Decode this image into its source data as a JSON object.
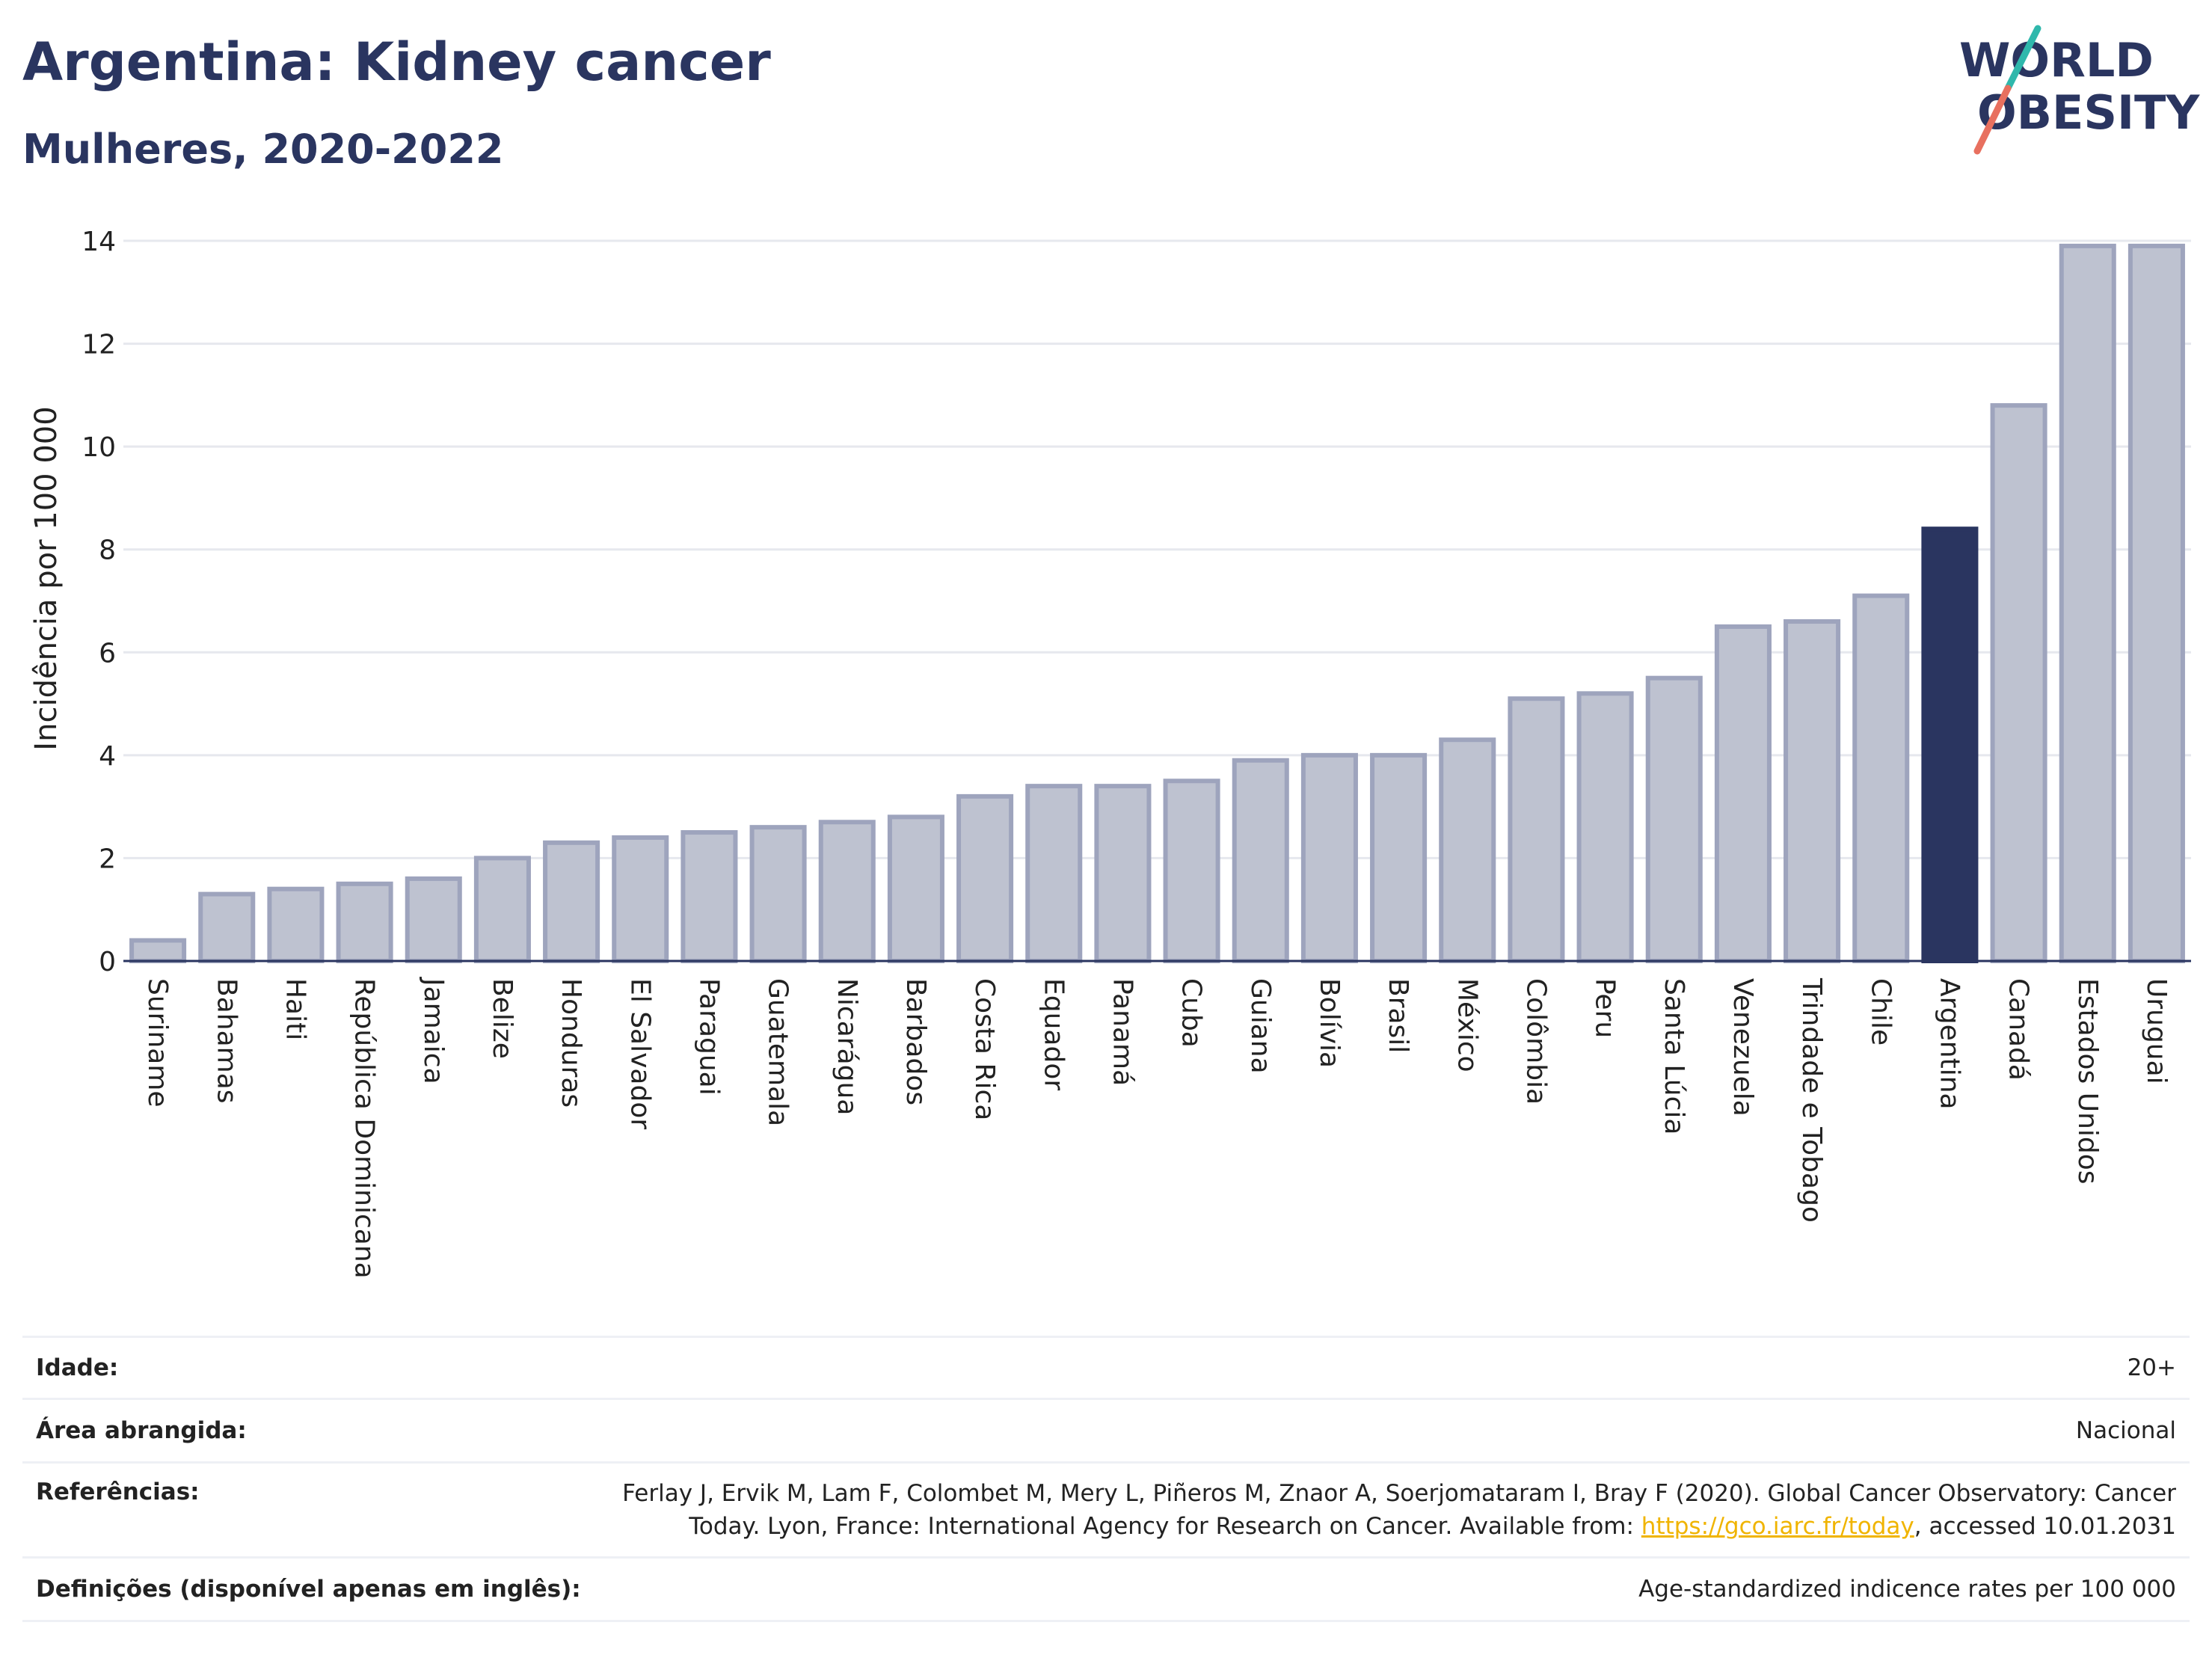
{
  "header": {
    "title": "Argentina: Kidney cancer",
    "subtitle": "Mulheres, 2020-2022",
    "logo_line1": "WORLD",
    "logo_line2": "OBESITY"
  },
  "colors": {
    "bar": "#bec2d0",
    "bar_border": "#9ea4bd",
    "highlight": "#2a3560",
    "grid": "#e6e8ee",
    "logo_teal": "#2fb8ac",
    "logo_coral": "#e8705f"
  },
  "chart_data": {
    "type": "bar",
    "ylabel": "Incidência por 100 000",
    "ylim": [
      0,
      14
    ],
    "yticks": [
      0,
      2,
      4,
      6,
      8,
      10,
      12,
      14
    ],
    "grid": true,
    "highlight": "Argentina",
    "categories": [
      "Suriname",
      "Bahamas",
      "Haiti",
      "República Dominicana",
      "Jamaica",
      "Belize",
      "Honduras",
      "El Salvador",
      "Paraguai",
      "Guatemala",
      "Nicarágua",
      "Barbados",
      "Costa Rica",
      "Equador",
      "Panamá",
      "Cuba",
      "Guiana",
      "Bolívia",
      "Brasil",
      "México",
      "Colômbia",
      "Peru",
      "Santa Lúcia",
      "Venezuela",
      "Trindade e Tobago",
      "Chile",
      "Argentina",
      "Canadá",
      "Estados Unidos",
      "Uruguai"
    ],
    "values": [
      0.4,
      1.3,
      1.4,
      1.5,
      1.6,
      2.0,
      2.3,
      2.4,
      2.5,
      2.6,
      2.7,
      2.8,
      3.2,
      3.4,
      3.4,
      3.5,
      3.9,
      4.0,
      4.0,
      4.3,
      5.1,
      5.2,
      5.5,
      6.5,
      6.6,
      7.1,
      8.4,
      10.8,
      13.9,
      13.9
    ]
  },
  "info": {
    "age_label": "Idade:",
    "age_value": "20+",
    "area_label": "Área abrangida:",
    "area_value": "Nacional",
    "refs_label": "Referências:",
    "refs_text_1": "Ferlay J, Ervik M, Lam F, Colombet M, Mery L, Piñeros M, Znaor A, Soerjomataram I, Bray F (2020). Global Cancer Observatory: Cancer",
    "refs_text_2": "Today. Lyon, France: International Agency for Research on Cancer. Available from: ",
    "refs_link": "https://gco.iarc.fr/today",
    "refs_text_3": ", accessed 10.01.2031",
    "defs_label": "Definições (disponível apenas em inglês):",
    "defs_value": "Age-standardized indicence rates per 100 000"
  }
}
